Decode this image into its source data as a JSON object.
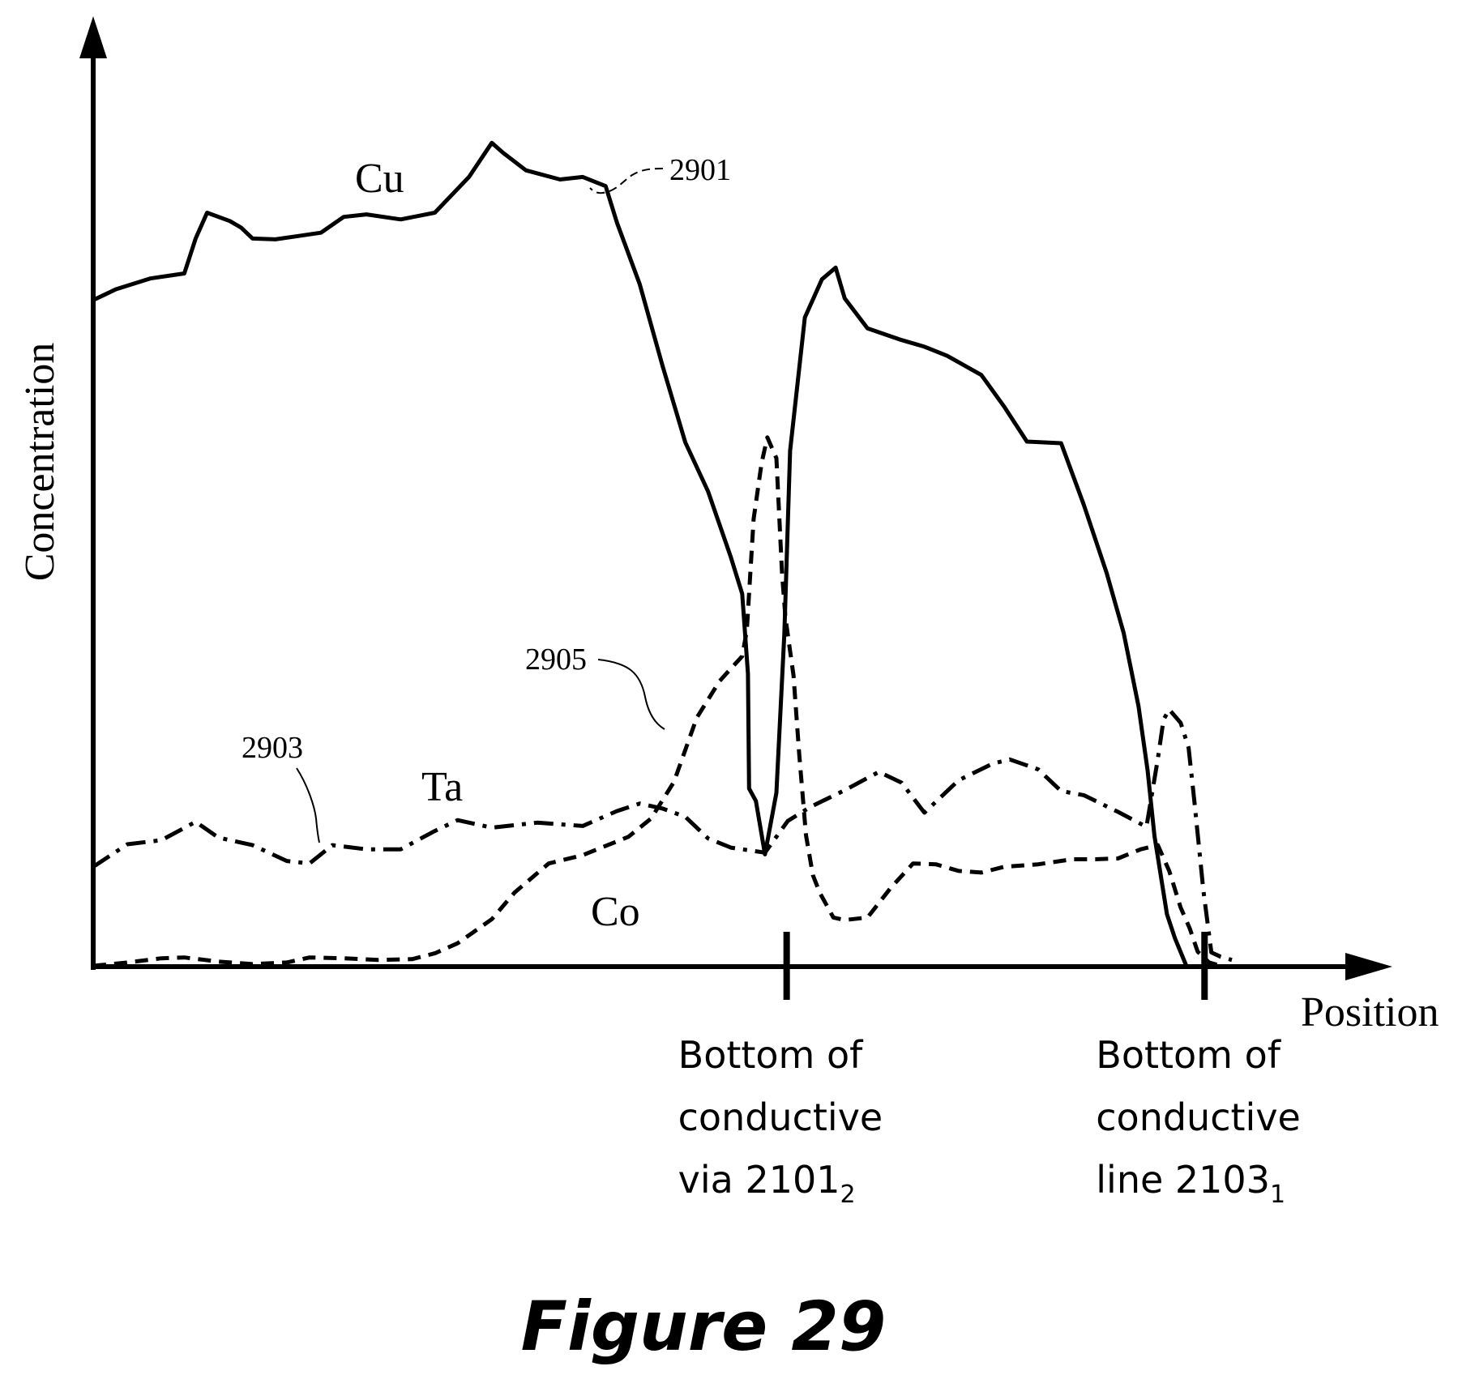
{
  "chart_data": {
    "type": "line",
    "title": "Figure 29",
    "xlabel": "Position",
    "ylabel": "Concentration",
    "xlim": [
      0,
      100
    ],
    "ylim": [
      0,
      100
    ],
    "grid": false,
    "legend": "none",
    "series": [
      {
        "name": "Cu",
        "ref": "2901",
        "dash": "solid",
        "points": [
          [
            0,
            80.1
          ],
          [
            2,
            81.4
          ],
          [
            5,
            82.7
          ],
          [
            8,
            83.3
          ],
          [
            9,
            87.5
          ],
          [
            10,
            90.6
          ],
          [
            12,
            89.6
          ],
          [
            13,
            88.8
          ],
          [
            14,
            87.5
          ],
          [
            16,
            87.4
          ],
          [
            18,
            87.8
          ],
          [
            20,
            88.2
          ],
          [
            22,
            90.1
          ],
          [
            24,
            90.4
          ],
          [
            27,
            89.8
          ],
          [
            30,
            90.6
          ],
          [
            33,
            94.9
          ],
          [
            35,
            99.0
          ],
          [
            36,
            97.8
          ],
          [
            38,
            95.7
          ],
          [
            41,
            94.6
          ],
          [
            43,
            94.9
          ],
          [
            45,
            93.8
          ],
          [
            46,
            89.4
          ],
          [
            48,
            82.0
          ],
          [
            50,
            72.2
          ],
          [
            52,
            63.0
          ],
          [
            54,
            57.1
          ],
          [
            56,
            49.2
          ],
          [
            57,
            44.8
          ],
          [
            57.5,
            35.2
          ],
          [
            57.6,
            21.4
          ],
          [
            58.2,
            19.9
          ],
          [
            59,
            13.5
          ],
          [
            60,
            20.9
          ],
          [
            60.7,
            40.0
          ],
          [
            61.2,
            62.0
          ],
          [
            62.5,
            78.0
          ],
          [
            64,
            82.6
          ],
          [
            65.2,
            84.0
          ],
          [
            66,
            80.3
          ],
          [
            68,
            76.7
          ],
          [
            71,
            75.3
          ],
          [
            73,
            74.5
          ],
          [
            75,
            73.4
          ],
          [
            78,
            71.1
          ],
          [
            80,
            67.3
          ],
          [
            82,
            63.1
          ],
          [
            85,
            62.9
          ],
          [
            87,
            55.5
          ],
          [
            89,
            47.3
          ],
          [
            90.5,
            40.1
          ],
          [
            91.8,
            31.3
          ],
          [
            92.6,
            23.6
          ],
          [
            93.2,
            15.7
          ],
          [
            94.3,
            6.3
          ],
          [
            95,
            3.4
          ],
          [
            96,
            0.1
          ]
        ]
      },
      {
        "name": "Ta",
        "ref": "2903",
        "dash": "dash-dot",
        "points": [
          [
            0,
            12.0
          ],
          [
            3,
            14.7
          ],
          [
            6,
            15.2
          ],
          [
            9,
            17.4
          ],
          [
            11,
            15.5
          ],
          [
            14,
            14.6
          ],
          [
            17,
            12.7
          ],
          [
            19,
            12.4
          ],
          [
            21,
            14.6
          ],
          [
            24,
            14.1
          ],
          [
            27,
            14.1
          ],
          [
            30,
            16.3
          ],
          [
            32,
            17.6
          ],
          [
            35,
            16.7
          ],
          [
            39,
            17.3
          ],
          [
            43,
            16.9
          ],
          [
            46,
            18.7
          ],
          [
            48,
            19.6
          ],
          [
            50,
            19.0
          ],
          [
            52,
            18.0
          ],
          [
            54,
            15.4
          ],
          [
            56,
            14.3
          ],
          [
            59,
            13.7
          ],
          [
            61,
            17.5
          ],
          [
            63,
            19.2
          ],
          [
            66,
            21.2
          ],
          [
            69,
            23.4
          ],
          [
            71,
            22.1
          ],
          [
            73,
            18.5
          ],
          [
            76,
            22.4
          ],
          [
            79,
            24.4
          ],
          [
            80.5,
            24.9
          ],
          [
            83,
            23.7
          ],
          [
            85,
            21.1
          ],
          [
            87,
            20.6
          ],
          [
            90,
            18.6
          ],
          [
            92.5,
            16.8
          ],
          [
            93.5,
            25.0
          ],
          [
            94,
            29.7
          ],
          [
            94.5,
            30.9
          ],
          [
            95.5,
            29.3
          ],
          [
            96.2,
            26.3
          ],
          [
            96.7,
            20.0
          ],
          [
            97.5,
            9.1
          ],
          [
            98.2,
            1.7
          ],
          [
            99,
            1.2
          ],
          [
            100,
            0.8
          ]
        ]
      },
      {
        "name": "Co",
        "ref": "2905",
        "dash": "dashed",
        "points": [
          [
            0,
            0.1
          ],
          [
            3,
            0.5
          ],
          [
            6,
            1.0
          ],
          [
            8,
            1.1
          ],
          [
            11,
            0.6
          ],
          [
            14,
            0.3
          ],
          [
            17,
            0.5
          ],
          [
            19,
            1.1
          ],
          [
            22,
            1.0
          ],
          [
            25,
            0.8
          ],
          [
            28,
            0.9
          ],
          [
            30,
            1.6
          ],
          [
            32,
            2.8
          ],
          [
            35,
            5.7
          ],
          [
            37,
            8.9
          ],
          [
            40,
            12.4
          ],
          [
            43,
            13.4
          ],
          [
            47,
            15.6
          ],
          [
            49,
            17.8
          ],
          [
            51,
            22.2
          ],
          [
            53,
            29.9
          ],
          [
            55,
            34.3
          ],
          [
            57,
            37.3
          ],
          [
            57.4,
            40.4
          ],
          [
            58,
            53.8
          ],
          [
            58.7,
            60.5
          ],
          [
            59.2,
            63.6
          ],
          [
            60,
            61.1
          ],
          [
            60.5,
            47.2
          ],
          [
            60.8,
            41.9
          ],
          [
            61.5,
            35.0
          ],
          [
            62,
            25.6
          ],
          [
            62.6,
            15.8
          ],
          [
            63.2,
            11.0
          ],
          [
            63.8,
            8.9
          ],
          [
            65,
            5.9
          ],
          [
            66,
            5.6
          ],
          [
            68,
            5.9
          ],
          [
            70,
            9.4
          ],
          [
            72,
            12.4
          ],
          [
            74,
            12.3
          ],
          [
            76,
            11.5
          ],
          [
            78,
            11.3
          ],
          [
            80,
            12.0
          ],
          [
            83,
            12.3
          ],
          [
            86,
            12.9
          ],
          [
            88,
            12.9
          ],
          [
            90,
            13.0
          ],
          [
            92,
            14.1
          ],
          [
            93.5,
            14.6
          ],
          [
            94.5,
            11.5
          ],
          [
            95.5,
            7.1
          ],
          [
            96.3,
            4.6
          ],
          [
            97,
            1.8
          ],
          [
            98,
            0.5
          ],
          [
            99,
            0.1
          ]
        ]
      }
    ],
    "markers": [
      {
        "x": 60.9,
        "label": "Bottom of\nconductive\nvia 2101",
        "subscript": "2"
      },
      {
        "x": 97.6,
        "label": "Bottom of\nconductive\nline 2103",
        "subscript": "1"
      }
    ],
    "annotations": [
      {
        "text": "Cu",
        "target": "Cu"
      },
      {
        "text": "Ta",
        "target": "Ta"
      },
      {
        "text": "Co",
        "target": "Co"
      },
      {
        "text": "2901",
        "target": "Cu"
      },
      {
        "text": "2903",
        "target": "Ta"
      },
      {
        "text": "2905",
        "target": "Co"
      }
    ]
  }
}
